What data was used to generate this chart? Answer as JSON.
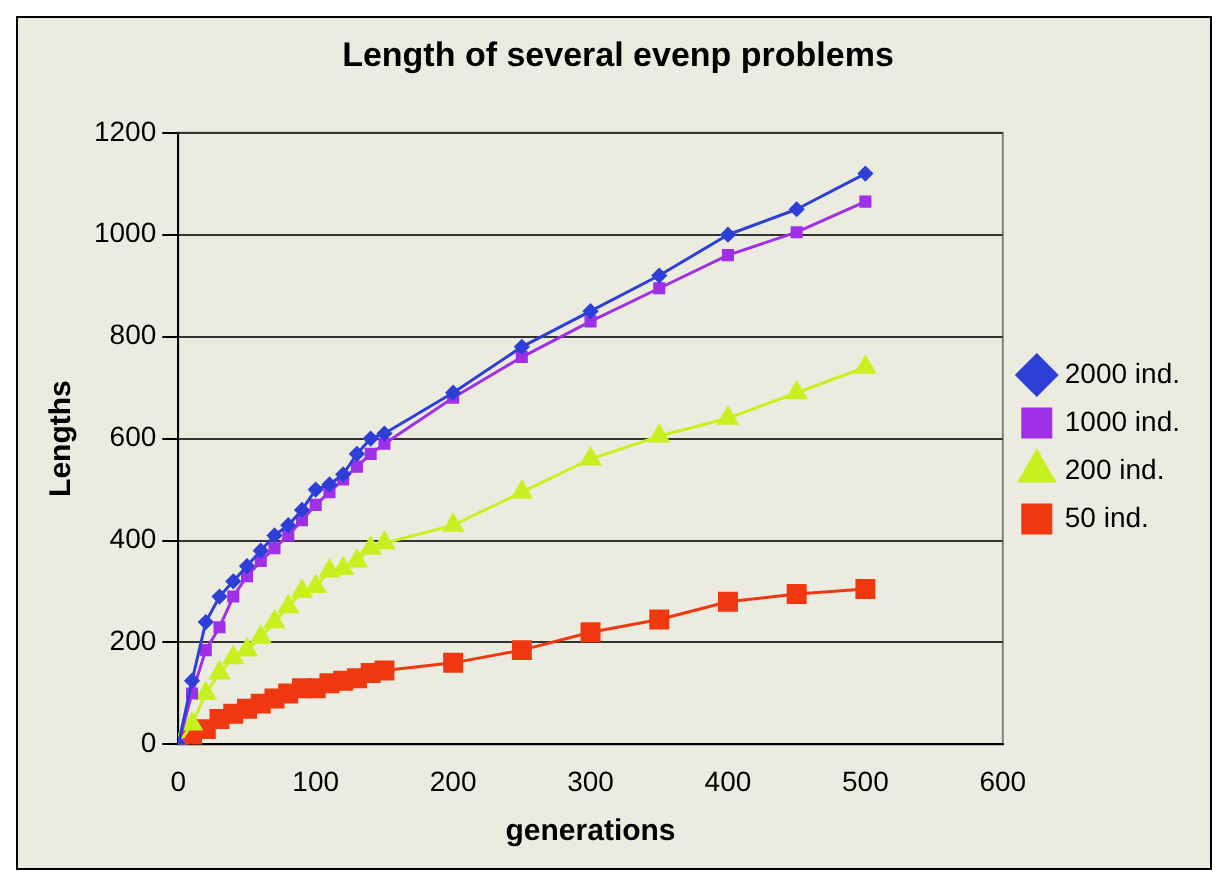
{
  "chart_data": {
    "type": "line",
    "title": "Length of several evenp problems",
    "xlabel": "generations",
    "ylabel": "Lengths",
    "x": [
      0,
      10,
      20,
      30,
      40,
      50,
      60,
      70,
      80,
      90,
      100,
      110,
      120,
      130,
      140,
      150,
      200,
      250,
      300,
      350,
      400,
      450,
      500
    ],
    "xlim": [
      0,
      600
    ],
    "xticks": [
      0,
      100,
      200,
      300,
      400,
      500,
      600
    ],
    "ylim": [
      0,
      1200
    ],
    "yticks": [
      0,
      200,
      400,
      600,
      800,
      1000,
      1200
    ],
    "grid": "y",
    "legend": "right",
    "series": [
      {
        "name": "2000 ind.",
        "color": "#2e3fd8",
        "marker": "diamond",
        "values": [
          0,
          125,
          240,
          290,
          320,
          350,
          380,
          410,
          430,
          460,
          500,
          510,
          530,
          570,
          600,
          610,
          690,
          780,
          850,
          920,
          1000,
          1050,
          1120
        ]
      },
      {
        "name": "1000 ind.",
        "color": "#a030e8",
        "marker": "square",
        "values": [
          0,
          100,
          185,
          230,
          290,
          330,
          360,
          385,
          410,
          440,
          470,
          495,
          520,
          545,
          570,
          590,
          680,
          760,
          830,
          895,
          960,
          1005,
          1065
        ]
      },
      {
        "name": "200 ind.",
        "color": "#c8f020",
        "marker": "triangle",
        "values": [
          0,
          40,
          100,
          140,
          170,
          185,
          210,
          240,
          270,
          300,
          310,
          340,
          345,
          360,
          385,
          395,
          430,
          495,
          560,
          605,
          640,
          690,
          740
        ]
      },
      {
        "name": "50 ind.",
        "color": "#f03810",
        "marker": "square",
        "values": [
          0,
          10,
          30,
          50,
          60,
          70,
          80,
          90,
          100,
          110,
          110,
          120,
          125,
          130,
          140,
          145,
          160,
          185,
          220,
          245,
          280,
          295,
          305
        ]
      }
    ]
  }
}
